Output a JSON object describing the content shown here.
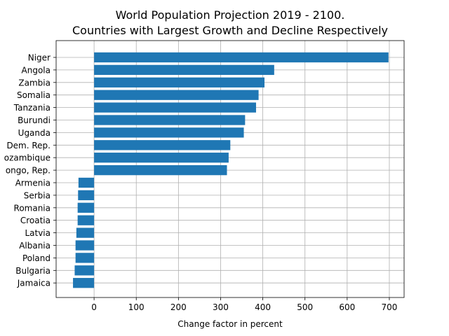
{
  "chart_data": {
    "type": "bar",
    "orientation": "horizontal",
    "title_line1": "World Population Projection 2019 - 2100.",
    "title_line2": "Countries with Largest Growth and Decline Respectively",
    "xlabel": "Change factor in percent",
    "ylabel": "",
    "xlim": [
      -90,
      735
    ],
    "xticks": [
      0,
      100,
      200,
      300,
      400,
      500,
      600,
      700
    ],
    "grid": true,
    "bar_color": "#1f77b4",
    "categories": [
      "Niger",
      "Angola",
      "Zambia",
      "Somalia",
      "Tanzania",
      "Burundi",
      "Uganda",
      "Dem. Rep.",
      "ozambique",
      "ongo, Rep.",
      "Armenia",
      "Serbia",
      "Romania",
      "Croatia",
      "Latvia",
      "Albania",
      "Poland",
      "Bulgaria",
      "Jamaica"
    ],
    "values": [
      698,
      427,
      404,
      390,
      384,
      358,
      355,
      323,
      319,
      315,
      -37,
      -38,
      -39,
      -39,
      -42,
      -44,
      -44,
      -46,
      -50
    ]
  }
}
